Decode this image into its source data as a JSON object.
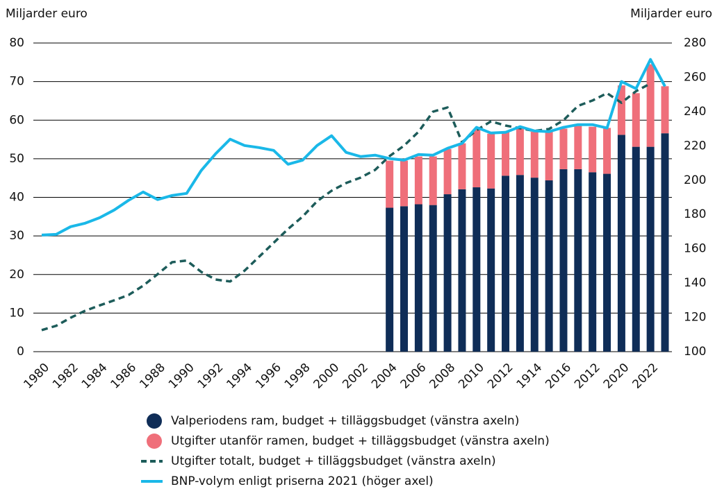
{
  "chart_data": {
    "type": "combo",
    "ylabel": "Miljarder euro",
    "y2label": "Miljarder euro",
    "categories": [
      "1980",
      null,
      "1982",
      null,
      "1984",
      null,
      "1986",
      null,
      "1988",
      null,
      "1990",
      null,
      "1992",
      null,
      "1994",
      null,
      "1996",
      null,
      "1998",
      null,
      "2000",
      null,
      "2002",
      null,
      "2004",
      null,
      "2006",
      null,
      "2008",
      null,
      "2010",
      null,
      "2012",
      null,
      "1914",
      null,
      "2016",
      null,
      "2012",
      null,
      "2020",
      null,
      "2022",
      null
    ],
    "ylim": [
      0,
      80
    ],
    "yticks": [
      0,
      10,
      20,
      30,
      40,
      50,
      60,
      70,
      80
    ],
    "y2lim": [
      100,
      280
    ],
    "y2ticks": [
      100,
      120,
      140,
      160,
      180,
      200,
      220,
      240,
      260,
      280
    ],
    "grid": true,
    "series": [
      {
        "name": "Valperiodens ram, budget + tilläggsbudget (vänstra axeln)",
        "type": "bar",
        "stack": true,
        "color": "#0f2d57",
        "values": [
          null,
          null,
          null,
          null,
          null,
          null,
          null,
          null,
          null,
          null,
          null,
          null,
          null,
          null,
          null,
          null,
          null,
          null,
          null,
          null,
          null,
          null,
          null,
          null,
          37.3,
          37.7,
          38.2,
          38.0,
          40.8,
          42.1,
          42.6,
          42.3,
          45.6,
          45.8,
          45.1,
          44.4,
          47.3,
          47.3,
          46.5,
          46.1,
          56.2,
          53.1,
          53.1,
          56.6
        ]
      },
      {
        "name": "Utgifter utanför ramen, budget + tilläggsbudget (vänstra axeln)",
        "type": "bar",
        "stack": true,
        "color": "#ef6f7a",
        "values": [
          null,
          null,
          null,
          null,
          null,
          null,
          null,
          null,
          null,
          null,
          null,
          null,
          null,
          null,
          null,
          null,
          null,
          null,
          null,
          null,
          null,
          null,
          null,
          null,
          12.2,
          11.8,
          12.4,
          12.6,
          11.7,
          11.9,
          14.9,
          14.2,
          11.4,
          12.2,
          11.9,
          12.6,
          10.5,
          11.2,
          11.8,
          11.9,
          12.8,
          13.9,
          21.4,
          12.2
        ]
      },
      {
        "name": "Utgifter totalt, budget + tilläggsbudget (vänstra axeln)",
        "type": "line",
        "dashed": true,
        "color": "#1d5c5a",
        "values": [
          5.6,
          6.7,
          8.8,
          10.6,
          12.0,
          13.3,
          14.7,
          17.1,
          20.1,
          23.2,
          23.6,
          20.7,
          18.7,
          18.2,
          21.0,
          24.6,
          28.2,
          31.8,
          35.0,
          39.0,
          41.7,
          43.7,
          45.1,
          47.1,
          50.7,
          53.4,
          57.0,
          62.2,
          63.3,
          54.3,
          57.4,
          59.7,
          58.6,
          57.9,
          57.2,
          57.7,
          60.0,
          63.7,
          65.1,
          67.0,
          64.5,
          67.5,
          69.5,
          null
        ]
      },
      {
        "name": "BNP-volym enligt priserna 2021 (höger axel)",
        "type": "line",
        "axis": "y2",
        "color": "#1ab8e8",
        "values": [
          168.0,
          168.4,
          172.9,
          174.9,
          178.1,
          182.6,
          188.3,
          193.1,
          188.7,
          191.1,
          192.3,
          205.6,
          215.4,
          223.9,
          220.2,
          219.0,
          217.4,
          209.3,
          211.7,
          220.2,
          225.9,
          216.2,
          213.8,
          214.6,
          212.6,
          211.7,
          215.0,
          214.6,
          218.6,
          221.5,
          230.8,
          227.5,
          227.9,
          231.2,
          228.7,
          228.3,
          230.8,
          232.4,
          232.4,
          230.4,
          257.5,
          253.4,
          270.4,
          254.7
        ]
      }
    ]
  }
}
